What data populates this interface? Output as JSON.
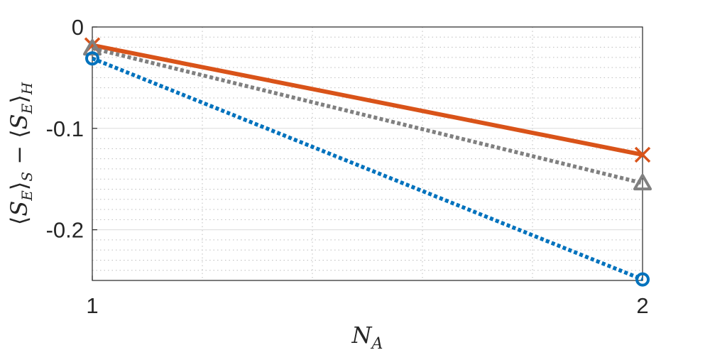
{
  "chart_data": {
    "type": "line",
    "title": "",
    "xlabel": "N_A",
    "ylabel": "⟨S_E⟩_S − ⟨S_E⟩_H",
    "x": [
      1,
      2
    ],
    "xlim": [
      1,
      2
    ],
    "ylim": [
      -0.25,
      0
    ],
    "xticks": [
      1,
      2
    ],
    "xtick_labels": [
      "1",
      "2"
    ],
    "yticks": [
      0,
      -0.1,
      -0.2
    ],
    "ytick_labels": [
      "0",
      "-0.1",
      "-0.2"
    ],
    "grid": true,
    "minor_grid": true,
    "series": [
      {
        "values": [
          -0.018,
          -0.126
        ],
        "color": "#D95319",
        "line_style": "solid",
        "marker": "x"
      },
      {
        "values": [
          -0.021,
          -0.154
        ],
        "color": "#808080",
        "line_style": "dotted",
        "marker": "triangle"
      },
      {
        "values": [
          -0.031,
          -0.249
        ],
        "color": "#0072BD",
        "line_style": "dotted",
        "marker": "circle"
      }
    ]
  }
}
